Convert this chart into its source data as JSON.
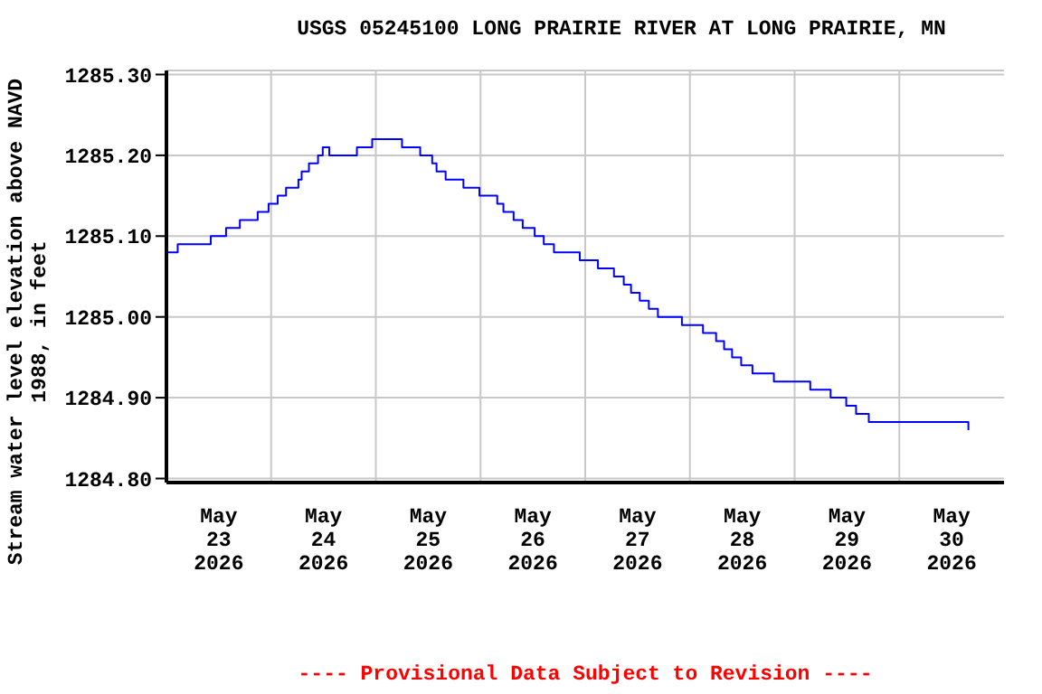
{
  "chart_data": {
    "type": "step",
    "title": "USGS 05245100 LONG PRAIRIE RIVER AT LONG PRAIRIE, MN",
    "ylabel": "Stream water level elevation above NAVD\n1988, in feet",
    "annotations": [
      "---- Provisional Data Subject to Revision ----"
    ],
    "x": [
      "2026-05-23T00:00",
      "2026-05-23T02:35",
      "2026-05-23T10:10",
      "2026-05-23T13:40",
      "2026-05-23T16:50",
      "2026-05-23T20:55",
      "2026-05-23T23:25",
      "2026-05-24T01:30",
      "2026-05-24T03:25",
      "2026-05-24T06:15",
      "2026-05-24T07:00",
      "2026-05-24T08:40",
      "2026-05-24T10:45",
      "2026-05-24T11:50",
      "2026-05-24T13:20",
      "2026-05-24T19:40",
      "2026-05-24T23:10",
      "2026-05-25T06:00",
      "2026-05-25T10:10",
      "2026-05-25T12:55",
      "2026-05-25T13:55",
      "2026-05-25T16:00",
      "2026-05-25T20:05",
      "2026-05-25T23:45",
      "2026-05-26T03:50",
      "2026-05-26T05:15",
      "2026-05-26T07:35",
      "2026-05-26T09:40",
      "2026-05-26T12:25",
      "2026-05-26T14:30",
      "2026-05-26T16:50",
      "2026-05-26T22:45",
      "2026-05-27T02:55",
      "2026-05-27T06:35",
      "2026-05-27T08:50",
      "2026-05-27T10:30",
      "2026-05-27T12:30",
      "2026-05-27T14:35",
      "2026-05-27T16:40",
      "2026-05-27T22:10",
      "2026-05-28T03:00",
      "2026-05-28T06:00",
      "2026-05-28T07:50",
      "2026-05-28T09:40",
      "2026-05-28T11:45",
      "2026-05-28T14:20",
      "2026-05-28T19:15",
      "2026-05-29T03:35",
      "2026-05-29T08:15",
      "2026-05-29T11:50",
      "2026-05-29T14:05",
      "2026-05-29T17:00",
      "2026-05-30T15:50"
    ],
    "series": [
      {
        "color": "#0000ff",
        "values": [
          1285.08,
          1285.09,
          1285.1,
          1285.11,
          1285.12,
          1285.13,
          1285.14,
          1285.15,
          1285.16,
          1285.17,
          1285.18,
          1285.19,
          1285.2,
          1285.21,
          1285.2,
          1285.21,
          1285.22,
          1285.21,
          1285.2,
          1285.19,
          1285.18,
          1285.17,
          1285.16,
          1285.15,
          1285.14,
          1285.13,
          1285.12,
          1285.11,
          1285.1,
          1285.09,
          1285.08,
          1285.07,
          1285.06,
          1285.05,
          1285.04,
          1285.03,
          1285.02,
          1285.01,
          1285.0,
          1284.99,
          1284.98,
          1284.97,
          1284.96,
          1284.95,
          1284.94,
          1284.93,
          1284.92,
          1284.91,
          1284.9,
          1284.89,
          1284.88,
          1284.87,
          1284.86
        ]
      }
    ],
    "xlim": [
      "2026-05-23T00:00",
      "2026-05-31T00:00"
    ],
    "xticks": [
      {
        "value": "2026-05-23T12:00",
        "label": "May 23 2026"
      },
      {
        "value": "2026-05-24T00:00",
        "label": null
      },
      {
        "value": "2026-05-24T12:00",
        "label": "May 24 2026"
      },
      {
        "value": "2026-05-25T00:00",
        "label": null
      },
      {
        "value": "2026-05-25T12:00",
        "label": "May 25 2026"
      },
      {
        "value": "2026-05-26T00:00",
        "label": null
      },
      {
        "value": "2026-05-26T12:00",
        "label": "May 26 2026"
      },
      {
        "value": "2026-05-27T00:00",
        "label": null
      },
      {
        "value": "2026-05-27T12:00",
        "label": "May 27 2026"
      },
      {
        "value": "2026-05-28T00:00",
        "label": null
      },
      {
        "value": "2026-05-28T12:00",
        "label": "May 28 2026"
      },
      {
        "value": "2026-05-29T00:00",
        "label": null
      },
      {
        "value": "2026-05-29T12:00",
        "label": "May 29 2026"
      },
      {
        "value": "2026-05-30T00:00",
        "label": null
      },
      {
        "value": "2026-05-30T12:00",
        "label": "May 30 2026"
      }
    ],
    "ylim": [
      1284.795,
      1285.305
    ],
    "yticks": [
      {
        "value": 1284.8,
        "label": "1284.80"
      },
      {
        "value": 1284.9,
        "label": "1284.90"
      },
      {
        "value": 1285.0,
        "label": "1285.00"
      },
      {
        "value": 1285.1,
        "label": "1285.10"
      },
      {
        "value": 1285.2,
        "label": "1285.20"
      },
      {
        "value": 1285.3,
        "label": "1285.30"
      }
    ],
    "grid": true,
    "legend": false,
    "marker": "none",
    "line_style": "solid"
  }
}
